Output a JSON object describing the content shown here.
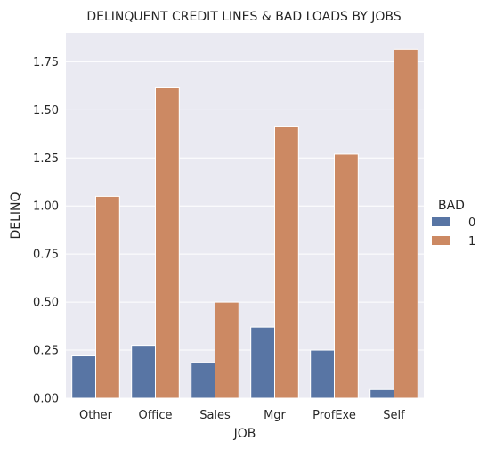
{
  "chart_data": {
    "type": "bar",
    "title": "DELINQUENT CREDIT LINES & BAD LOADS BY JOBS",
    "xlabel": "JOB",
    "ylabel": "DELINQ",
    "categories": [
      "Other",
      "Office",
      "Sales",
      "Mgr",
      "ProfExe",
      "Self"
    ],
    "series": [
      {
        "name": "0",
        "color": "#5875a4",
        "values": [
          0.22,
          0.275,
          0.185,
          0.37,
          0.25,
          0.045
        ]
      },
      {
        "name": "1",
        "color": "#cc8963",
        "values": [
          1.05,
          1.615,
          0.5,
          1.415,
          1.27,
          1.815
        ]
      }
    ],
    "ylim": [
      0,
      1.9
    ],
    "yticks": [
      "0.00",
      "0.25",
      "0.50",
      "0.75",
      "1.00",
      "1.25",
      "1.50",
      "1.75"
    ],
    "ytick_values": [
      0,
      0.25,
      0.5,
      0.75,
      1.0,
      1.25,
      1.5,
      1.75
    ],
    "grid": true,
    "background": "#eaeaf2",
    "legend": {
      "title": "BAD",
      "placement": "right"
    }
  }
}
